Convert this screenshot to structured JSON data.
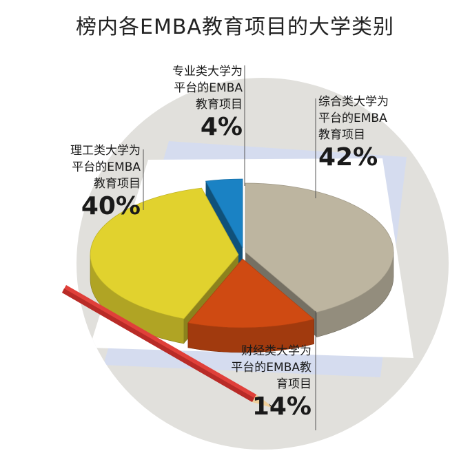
{
  "chart_data": {
    "type": "pie",
    "title": "榜内各EMBA教育项目的大学类别",
    "slices": [
      {
        "label_lines": [
          "综合类大学为",
          "平台的EMBA",
          "教育项目"
        ],
        "value": 42,
        "value_label": "42%",
        "color": "#bdb5a0"
      },
      {
        "label_lines": [
          "财经类大学为",
          "平台的EMBA教",
          "育项目"
        ],
        "value": 14,
        "value_label": "14%",
        "color": "#cf4a12"
      },
      {
        "label_lines": [
          "理工类大学为",
          "平台的EMBA",
          "教育项目"
        ],
        "value": 40,
        "value_label": "40%",
        "color": "#e1d22e"
      },
      {
        "label_lines": [
          "专业类大学为",
          "平台的EMBA",
          "教育项目"
        ],
        "value": 4,
        "value_label": "4%",
        "color": "#1a82c4"
      }
    ]
  }
}
